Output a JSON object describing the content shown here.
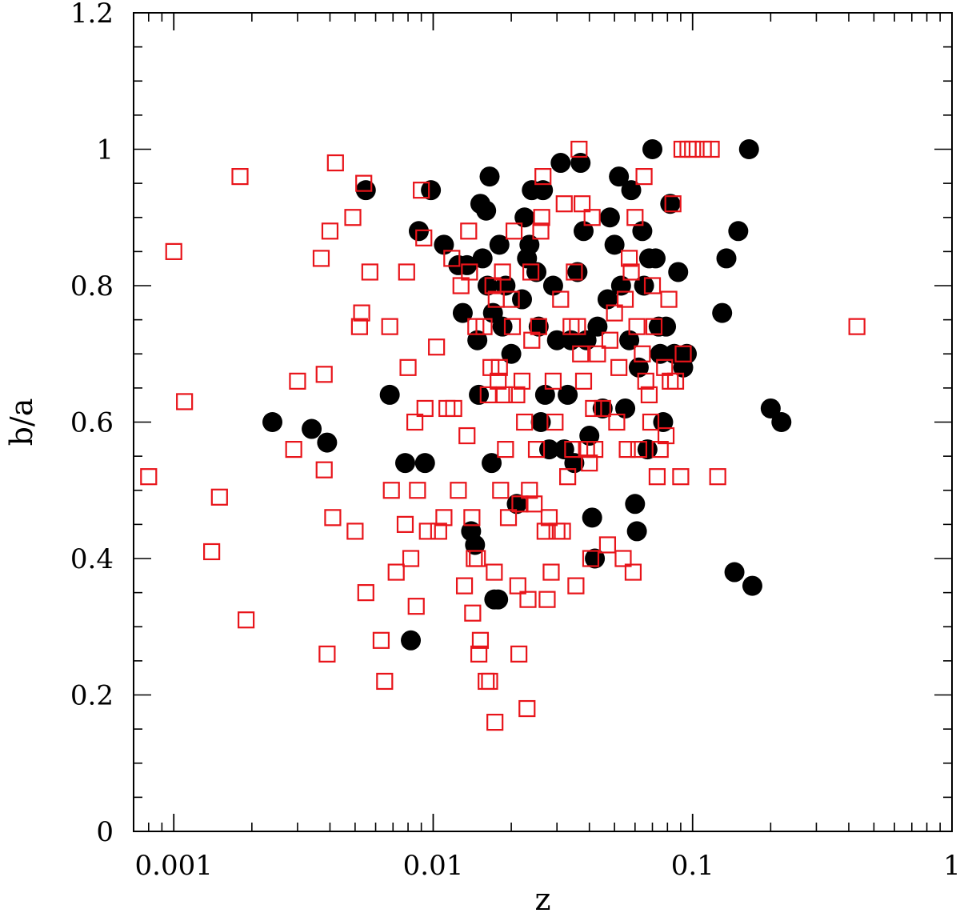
{
  "chart_data": {
    "type": "scatter",
    "title": "",
    "xlabel": "z",
    "ylabel": "b/a",
    "xscale": "log",
    "xlim": [
      0.0007,
      1.0
    ],
    "ylim": [
      0.0,
      1.2
    ],
    "x_tick_labels": [
      "0.001",
      "0.01",
      "0.1",
      "1"
    ],
    "x_tick_values": [
      0.001,
      0.01,
      0.1,
      1
    ],
    "y_tick_labels": [
      "0",
      "0.2",
      "0.4",
      "0.6",
      "0.8",
      "1",
      "1.2"
    ],
    "y_tick_values": [
      0,
      0.2,
      0.4,
      0.6,
      0.8,
      1.0,
      1.2
    ],
    "grid": false,
    "legend": "none",
    "series": [
      {
        "marker": "filled-circle",
        "color": "#000000",
        "points": [
          [
            0.0024,
            0.6
          ],
          [
            0.0034,
            0.59
          ],
          [
            0.0039,
            0.57
          ],
          [
            0.0055,
            0.94
          ],
          [
            0.0068,
            0.64
          ],
          [
            0.0078,
            0.54
          ],
          [
            0.0082,
            0.28
          ],
          [
            0.0088,
            0.88
          ],
          [
            0.0093,
            0.54
          ],
          [
            0.0098,
            0.94
          ],
          [
            0.011,
            0.86
          ],
          [
            0.0125,
            0.83
          ],
          [
            0.013,
            0.76
          ],
          [
            0.0135,
            0.83
          ],
          [
            0.014,
            0.44
          ],
          [
            0.0145,
            0.42
          ],
          [
            0.0148,
            0.72
          ],
          [
            0.015,
            0.64
          ],
          [
            0.0152,
            0.92
          ],
          [
            0.0155,
            0.84
          ],
          [
            0.016,
            0.91
          ],
          [
            0.0162,
            0.8
          ],
          [
            0.0165,
            0.96
          ],
          [
            0.0168,
            0.54
          ],
          [
            0.017,
            0.76
          ],
          [
            0.0172,
            0.34
          ],
          [
            0.0178,
            0.34
          ],
          [
            0.018,
            0.86
          ],
          [
            0.0185,
            0.74
          ],
          [
            0.019,
            0.8
          ],
          [
            0.02,
            0.7
          ],
          [
            0.021,
            0.48
          ],
          [
            0.022,
            0.78
          ],
          [
            0.0225,
            0.9
          ],
          [
            0.023,
            0.84
          ],
          [
            0.0235,
            0.86
          ],
          [
            0.024,
            0.94
          ],
          [
            0.025,
            0.82
          ],
          [
            0.0255,
            0.74
          ],
          [
            0.026,
            0.6
          ],
          [
            0.0265,
            0.94
          ],
          [
            0.027,
            0.64
          ],
          [
            0.028,
            0.56
          ],
          [
            0.029,
            0.8
          ],
          [
            0.03,
            0.72
          ],
          [
            0.031,
            0.98
          ],
          [
            0.032,
            0.56
          ],
          [
            0.033,
            0.64
          ],
          [
            0.034,
            0.72
          ],
          [
            0.035,
            0.54
          ],
          [
            0.036,
            0.82
          ],
          [
            0.037,
            0.98
          ],
          [
            0.038,
            0.88
          ],
          [
            0.039,
            0.72
          ],
          [
            0.04,
            0.58
          ],
          [
            0.041,
            0.46
          ],
          [
            0.042,
            0.4
          ],
          [
            0.043,
            0.74
          ],
          [
            0.045,
            0.62
          ],
          [
            0.047,
            0.78
          ],
          [
            0.048,
            0.9
          ],
          [
            0.05,
            0.86
          ],
          [
            0.052,
            0.96
          ],
          [
            0.053,
            0.8
          ],
          [
            0.055,
            0.62
          ],
          [
            0.057,
            0.72
          ],
          [
            0.058,
            0.94
          ],
          [
            0.06,
            0.48
          ],
          [
            0.061,
            0.44
          ],
          [
            0.062,
            0.68
          ],
          [
            0.064,
            0.88
          ],
          [
            0.065,
            0.8
          ],
          [
            0.067,
            0.56
          ],
          [
            0.068,
            0.84
          ],
          [
            0.07,
            1.0
          ],
          [
            0.072,
            0.84
          ],
          [
            0.074,
            0.74
          ],
          [
            0.075,
            0.7
          ],
          [
            0.077,
            0.6
          ],
          [
            0.079,
            0.74
          ],
          [
            0.082,
            0.92
          ],
          [
            0.085,
            0.7
          ],
          [
            0.088,
            0.82
          ],
          [
            0.092,
            0.68
          ],
          [
            0.095,
            0.7
          ],
          [
            0.13,
            0.76
          ],
          [
            0.135,
            0.84
          ],
          [
            0.145,
            0.38
          ],
          [
            0.15,
            0.88
          ],
          [
            0.165,
            1.0
          ],
          [
            0.17,
            0.36
          ],
          [
            0.2,
            0.62
          ],
          [
            0.22,
            0.6
          ]
        ]
      },
      {
        "marker": "open-square",
        "color": "#e8141a",
        "points": [
          [
            0.0008,
            0.52
          ],
          [
            0.001,
            0.85
          ],
          [
            0.0011,
            0.63
          ],
          [
            0.0014,
            0.41
          ],
          [
            0.0015,
            0.49
          ],
          [
            0.0018,
            0.96
          ],
          [
            0.0019,
            0.31
          ],
          [
            0.0029,
            0.56
          ],
          [
            0.003,
            0.66
          ],
          [
            0.0037,
            0.84
          ],
          [
            0.0038,
            0.53
          ],
          [
            0.0038,
            0.67
          ],
          [
            0.0039,
            0.26
          ],
          [
            0.004,
            0.88
          ],
          [
            0.0041,
            0.46
          ],
          [
            0.0042,
            0.98
          ],
          [
            0.0049,
            0.9
          ],
          [
            0.005,
            0.44
          ],
          [
            0.0052,
            0.74
          ],
          [
            0.0053,
            0.76
          ],
          [
            0.0054,
            0.95
          ],
          [
            0.0055,
            0.35
          ],
          [
            0.0057,
            0.82
          ],
          [
            0.0063,
            0.28
          ],
          [
            0.0065,
            0.22
          ],
          [
            0.0068,
            0.74
          ],
          [
            0.0069,
            0.5
          ],
          [
            0.0072,
            0.38
          ],
          [
            0.0078,
            0.45
          ],
          [
            0.0079,
            0.82
          ],
          [
            0.008,
            0.68
          ],
          [
            0.0082,
            0.4
          ],
          [
            0.0085,
            0.6
          ],
          [
            0.0086,
            0.33
          ],
          [
            0.0087,
            0.5
          ],
          [
            0.009,
            0.94
          ],
          [
            0.0092,
            0.87
          ],
          [
            0.0093,
            0.62
          ],
          [
            0.0095,
            0.44
          ],
          [
            0.0103,
            0.71
          ],
          [
            0.0105,
            0.44
          ],
          [
            0.011,
            0.46
          ],
          [
            0.0113,
            0.62
          ],
          [
            0.0118,
            0.84
          ],
          [
            0.012,
            0.62
          ],
          [
            0.0125,
            0.5
          ],
          [
            0.0128,
            0.8
          ],
          [
            0.0132,
            0.36
          ],
          [
            0.0135,
            0.58
          ],
          [
            0.0137,
            0.88
          ],
          [
            0.0138,
            0.82
          ],
          [
            0.0141,
            0.46
          ],
          [
            0.0142,
            0.32
          ],
          [
            0.0144,
            0.4
          ],
          [
            0.0146,
            0.74
          ],
          [
            0.0148,
            0.4
          ],
          [
            0.015,
            0.26
          ],
          [
            0.0152,
            0.28
          ],
          [
            0.0157,
            0.74
          ],
          [
            0.016,
            0.22
          ],
          [
            0.0163,
            0.64
          ],
          [
            0.0165,
            0.22
          ],
          [
            0.0167,
            0.68
          ],
          [
            0.017,
            0.8
          ],
          [
            0.0172,
            0.38
          ],
          [
            0.0173,
            0.16
          ],
          [
            0.0175,
            0.78
          ],
          [
            0.0178,
            0.66
          ],
          [
            0.018,
            0.68
          ],
          [
            0.0182,
            0.5
          ],
          [
            0.0185,
            0.82
          ],
          [
            0.0188,
            0.64
          ],
          [
            0.019,
            0.56
          ],
          [
            0.0195,
            0.46
          ],
          [
            0.02,
            0.78
          ],
          [
            0.0202,
            0.74
          ],
          [
            0.0205,
            0.88
          ],
          [
            0.021,
            0.64
          ],
          [
            0.0212,
            0.36
          ],
          [
            0.0214,
            0.26
          ],
          [
            0.0216,
            0.48
          ],
          [
            0.022,
            0.66
          ],
          [
            0.0225,
            0.6
          ],
          [
            0.023,
            0.18
          ],
          [
            0.0232,
            0.34
          ],
          [
            0.0235,
            0.5
          ],
          [
            0.0238,
            0.82
          ],
          [
            0.024,
            0.72
          ],
          [
            0.0245,
            0.48
          ],
          [
            0.025,
            0.56
          ],
          [
            0.0255,
            0.74
          ],
          [
            0.026,
            0.88
          ],
          [
            0.0262,
            0.9
          ],
          [
            0.0265,
            0.96
          ],
          [
            0.027,
            0.44
          ],
          [
            0.0275,
            0.34
          ],
          [
            0.028,
            0.46
          ],
          [
            0.0285,
            0.38
          ],
          [
            0.029,
            0.66
          ],
          [
            0.0295,
            0.6
          ],
          [
            0.03,
            0.44
          ],
          [
            0.031,
            0.78
          ],
          [
            0.0315,
            0.44
          ],
          [
            0.032,
            0.92
          ],
          [
            0.033,
            0.52
          ],
          [
            0.034,
            0.74
          ],
          [
            0.0345,
            0.56
          ],
          [
            0.035,
            0.82
          ],
          [
            0.0355,
            0.36
          ],
          [
            0.036,
            0.74
          ],
          [
            0.0365,
            1.0
          ],
          [
            0.037,
            0.7
          ],
          [
            0.0375,
            0.92
          ],
          [
            0.038,
            0.66
          ],
          [
            0.039,
            0.56
          ],
          [
            0.04,
            0.54
          ],
          [
            0.0405,
            0.4
          ],
          [
            0.041,
            0.9
          ],
          [
            0.0415,
            0.62
          ],
          [
            0.042,
            0.56
          ],
          [
            0.043,
            0.7
          ],
          [
            0.045,
            0.62
          ],
          [
            0.047,
            0.42
          ],
          [
            0.048,
            0.72
          ],
          [
            0.05,
            0.76
          ],
          [
            0.051,
            0.6
          ],
          [
            0.052,
            0.68
          ],
          [
            0.054,
            0.4
          ],
          [
            0.055,
            0.78
          ],
          [
            0.056,
            0.56
          ],
          [
            0.057,
            0.84
          ],
          [
            0.058,
            0.82
          ],
          [
            0.059,
            0.38
          ],
          [
            0.06,
            0.9
          ],
          [
            0.061,
            0.74
          ],
          [
            0.062,
            0.56
          ],
          [
            0.064,
            0.7
          ],
          [
            0.065,
            0.96
          ],
          [
            0.066,
            0.66
          ],
          [
            0.068,
            0.64
          ],
          [
            0.069,
            0.6
          ],
          [
            0.07,
            0.8
          ],
          [
            0.071,
            0.74
          ],
          [
            0.073,
            0.52
          ],
          [
            0.075,
            0.56
          ],
          [
            0.078,
            0.68
          ],
          [
            0.079,
            0.58
          ],
          [
            0.081,
            0.78
          ],
          [
            0.082,
            0.66
          ],
          [
            0.084,
            0.92
          ],
          [
            0.086,
            0.66
          ],
          [
            0.09,
            0.52
          ],
          [
            0.091,
            1.0
          ],
          [
            0.092,
            0.7
          ],
          [
            0.096,
            1.0
          ],
          [
            0.1,
            1.0
          ],
          [
            0.11,
            1.0
          ],
          [
            0.118,
            1.0
          ],
          [
            0.125,
            0.52
          ],
          [
            0.43,
            0.74
          ]
        ]
      }
    ]
  }
}
